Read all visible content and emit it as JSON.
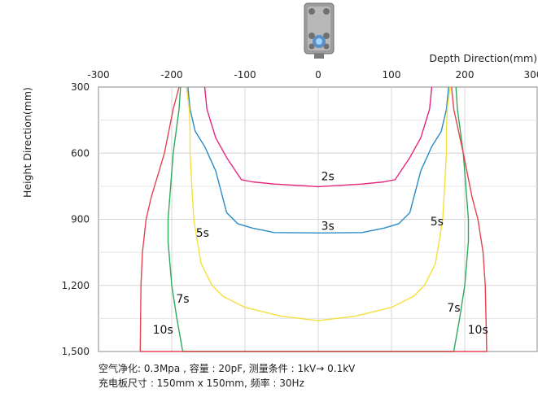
{
  "footnotes": [
    "空气净化: 0.3Mpa , 容量 : 20pF,  测量条件 : 1kV→  0.1kV",
    "充电板尺寸 : 150mm x 150mm, 频率 : 30Hz"
  ],
  "chart_data": {
    "type": "line",
    "xlabel": "Depth Direction(mm)",
    "ylabel": "Height Direction(mm)",
    "xlim": [
      -300,
      300
    ],
    "ylim": [
      300,
      1500
    ],
    "y_inverted": true,
    "grid": true,
    "x_ticks": [
      -300,
      -200,
      -100,
      0,
      100,
      200,
      300
    ],
    "x_tick_labels": [
      "-300",
      "-200",
      "-100",
      "0",
      "100",
      "200",
      "300"
    ],
    "y_ticks": [
      300,
      600,
      900,
      1200,
      1500
    ],
    "y_tick_labels": [
      "300",
      "600",
      "900",
      "1,200",
      "1,500"
    ],
    "series": [
      {
        "name": "2s",
        "color": "#e6247e",
        "label_point": [
          13,
          705
        ],
        "points": [
          [
            -155,
            300
          ],
          [
            -152,
            400
          ],
          [
            -140,
            530
          ],
          [
            -125,
            620
          ],
          [
            -105,
            720
          ],
          [
            -90,
            730
          ],
          [
            -60,
            740
          ],
          [
            0,
            752
          ],
          [
            60,
            740
          ],
          [
            90,
            730
          ],
          [
            105,
            720
          ],
          [
            125,
            620
          ],
          [
            140,
            530
          ],
          [
            152,
            400
          ],
          [
            155,
            300
          ]
        ]
      },
      {
        "name": "3s",
        "color": "#2a8bc6",
        "label_point": [
          13,
          930
        ],
        "points": [
          [
            -178,
            300
          ],
          [
            -175,
            400
          ],
          [
            -168,
            500
          ],
          [
            -155,
            570
          ],
          [
            -140,
            680
          ],
          [
            -125,
            870
          ],
          [
            -110,
            920
          ],
          [
            -90,
            940
          ],
          [
            -60,
            960
          ],
          [
            0,
            962
          ],
          [
            60,
            960
          ],
          [
            90,
            940
          ],
          [
            110,
            920
          ],
          [
            125,
            870
          ],
          [
            140,
            680
          ],
          [
            155,
            570
          ],
          [
            168,
            500
          ],
          [
            175,
            400
          ],
          [
            178,
            300
          ]
        ]
      },
      {
        "name": "5s",
        "color": "#f4e03a",
        "label_point": [
          -158,
          960
        ],
        "label_point_right": [
          162,
          910
        ],
        "points": [
          [
            -180,
            300
          ],
          [
            -176,
            400
          ],
          [
            -175,
            500
          ],
          [
            -175,
            600
          ],
          [
            -170,
            900
          ],
          [
            -160,
            1100
          ],
          [
            -145,
            1200
          ],
          [
            -130,
            1250
          ],
          [
            -100,
            1300
          ],
          [
            -50,
            1340
          ],
          [
            0,
            1360
          ],
          [
            50,
            1340
          ],
          [
            100,
            1300
          ],
          [
            130,
            1250
          ],
          [
            145,
            1200
          ],
          [
            160,
            1100
          ],
          [
            170,
            900
          ],
          [
            175,
            600
          ],
          [
            175,
            500
          ],
          [
            176,
            400
          ],
          [
            180,
            300
          ]
        ]
      },
      {
        "name": "7s",
        "color": "#2eaa5c",
        "label_point": [
          -185,
          1260
        ],
        "label_point_right": [
          185,
          1300
        ],
        "points": [
          [
            -188,
            300
          ],
          [
            -190,
            400
          ],
          [
            -198,
            600
          ],
          [
            -205,
            900
          ],
          [
            -205,
            1000
          ],
          [
            -200,
            1200
          ],
          [
            -193,
            1350
          ],
          [
            -185,
            1500
          ],
          [
            185,
            1500
          ],
          [
            193,
            1350
          ],
          [
            200,
            1200
          ],
          [
            205,
            1000
          ],
          [
            205,
            900
          ],
          [
            198,
            600
          ],
          [
            190,
            400
          ],
          [
            188,
            300
          ]
        ]
      },
      {
        "name": "10s",
        "color": "#e2444e",
        "label_point": [
          -212,
          1400
        ],
        "label_point_right": [
          218,
          1400
        ],
        "points": [
          [
            -190,
            300
          ],
          [
            -198,
            400
          ],
          [
            -210,
            600
          ],
          [
            -228,
            800
          ],
          [
            -235,
            900
          ],
          [
            -240,
            1050
          ],
          [
            -242,
            1200
          ],
          [
            -243,
            1500
          ],
          [
            230,
            1500
          ],
          [
            228,
            1200
          ],
          [
            225,
            1050
          ],
          [
            218,
            900
          ],
          [
            210,
            800
          ],
          [
            198,
            600
          ],
          [
            185,
            400
          ],
          [
            182,
            300
          ]
        ]
      }
    ]
  }
}
